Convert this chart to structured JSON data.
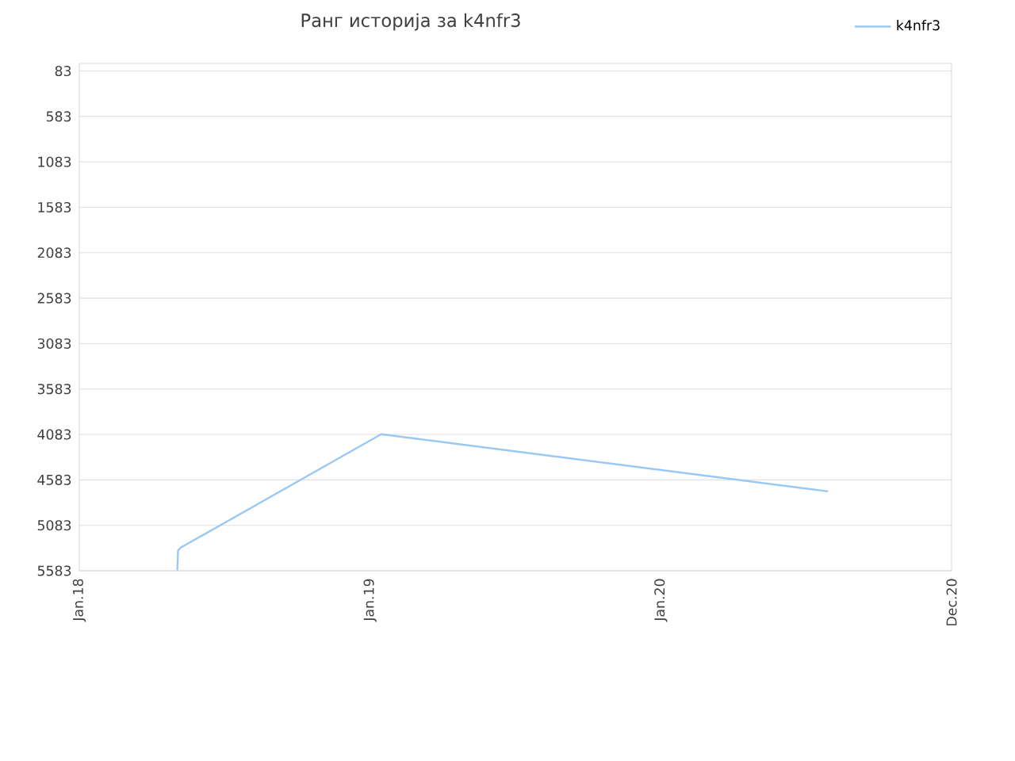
{
  "chart_data": {
    "type": "line",
    "title": "Ранг историја за k4nfr3",
    "x": [
      "2018-05-04",
      "2018-05-05",
      "2018-05-08",
      "2019-01-15",
      "2020-07-29"
    ],
    "series": [
      {
        "name": "k4nfr3",
        "color": "#99c8f5",
        "values": [
          5580,
          5360,
          5330,
          4080,
          4710
        ]
      }
    ],
    "xlim": [
      "2018-01-01",
      "2020-12-31"
    ],
    "xticks": [
      {
        "value": "2018-01-01",
        "label": "Jan.18"
      },
      {
        "value": "2019-01-01",
        "label": "Jan.19"
      },
      {
        "value": "2020-01-01",
        "label": "Jan.20"
      },
      {
        "value": "2020-12-31",
        "label": "Dec.20"
      }
    ],
    "ylim": [
      5583,
      0
    ],
    "yticks": [
      83,
      583,
      1083,
      1583,
      2083,
      2583,
      3083,
      3583,
      4083,
      4583,
      5083,
      5583
    ],
    "grid": "y",
    "legend": "top right",
    "marker": "none",
    "line_style": "solid"
  }
}
